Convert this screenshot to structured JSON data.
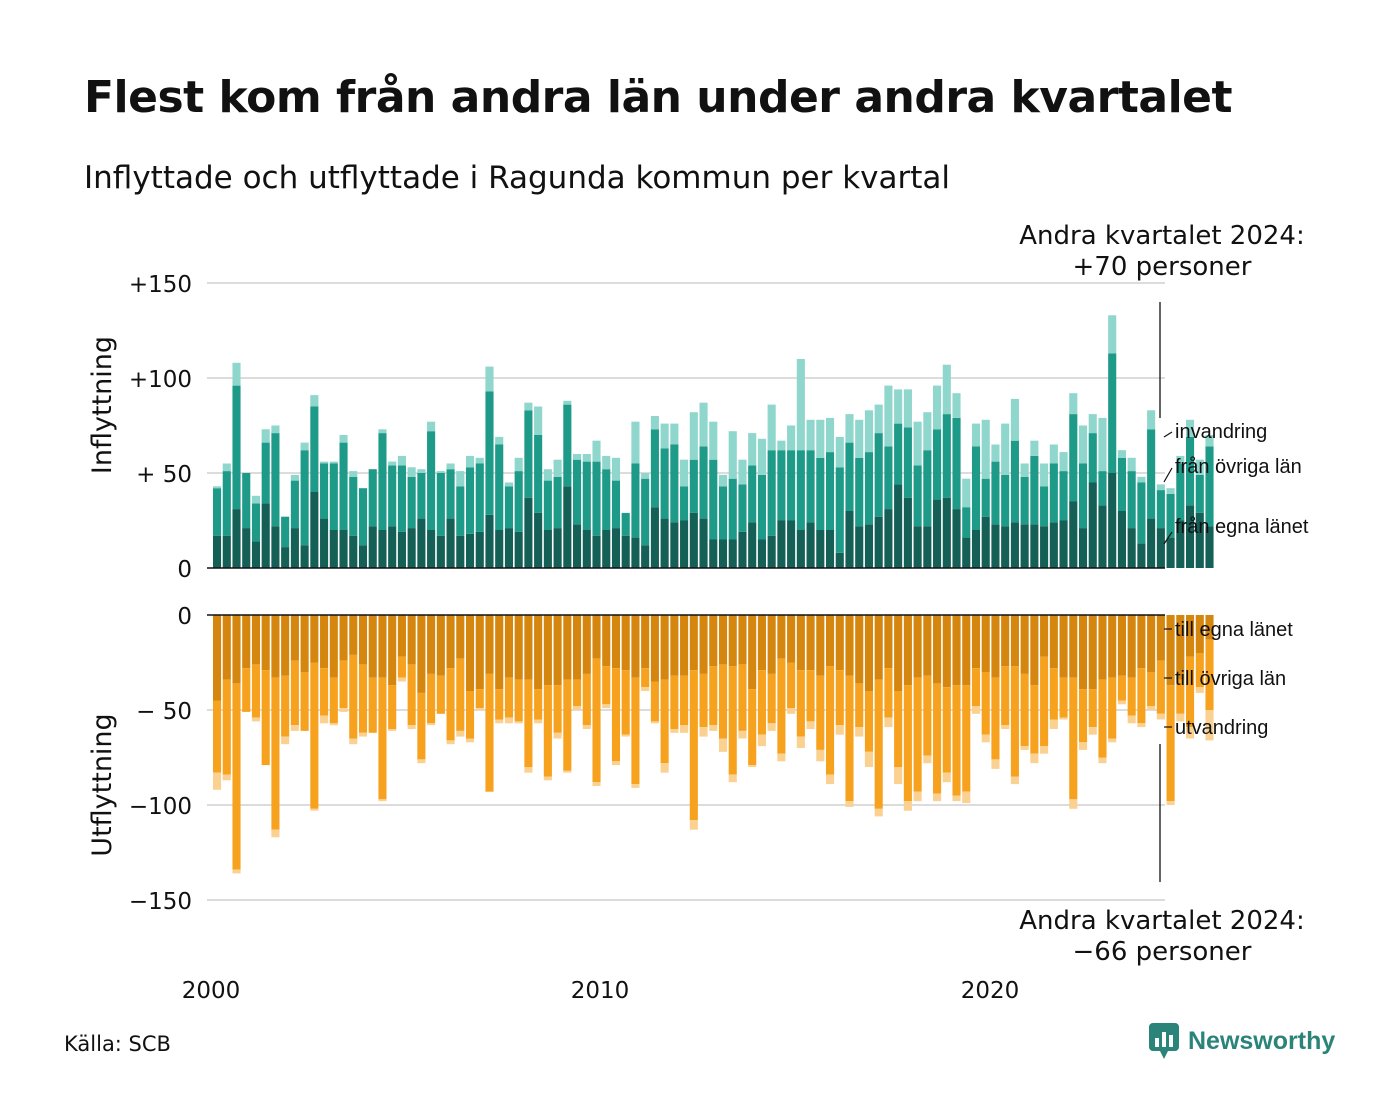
{
  "title": "Flest kom från andra län under andra kvartalet",
  "subtitle": "Inflyttade och utflyttade i Ragunda kommun per kvartal",
  "source": "Källa: SCB",
  "brand": "Newsworthy",
  "colors": {
    "egna_in": "#145f56",
    "ovriga_in": "#1e9a88",
    "invandring": "#8fd6cc",
    "egna_out": "#d4860f",
    "ovriga_out": "#f7a21f",
    "utvandring": "#fad191",
    "grid": "#dcdcdc",
    "brand": "#2a8479"
  },
  "chart_data": {
    "type": "bar",
    "stacked": true,
    "x_axis": {
      "ticks": [
        "2000",
        "2010",
        "2020"
      ],
      "range": [
        "2000 Q1",
        "2024 Q2"
      ]
    },
    "top_panel": {
      "ylabel": "Inflyttning",
      "ylim": [
        0,
        150
      ],
      "ticks": [
        {
          "value": 0,
          "label": "0"
        },
        {
          "value": 50,
          "label": "+ 50"
        },
        {
          "value": 100,
          "label": "+100"
        },
        {
          "value": 150,
          "label": "+150"
        }
      ],
      "annotation": [
        "Andra kvartalet 2024:",
        "+70 personer"
      ]
    },
    "bottom_panel": {
      "ylabel": "Utflyttning",
      "ylim": [
        -150,
        0
      ],
      "ticks": [
        {
          "value": 0,
          "label": "0"
        },
        {
          "value": -50,
          "label": "− 50"
        },
        {
          "value": -100,
          "label": "−100"
        },
        {
          "value": -150,
          "label": "−150"
        }
      ],
      "annotation": [
        "Andra kvartalet 2024:",
        "−66 personer"
      ]
    },
    "series": [
      {
        "name": "från egna länet",
        "panel": "top",
        "values": [
          17,
          17,
          31,
          21,
          14,
          34,
          22,
          11,
          21,
          12,
          40,
          26,
          20,
          20,
          17,
          12,
          22,
          20,
          22,
          19,
          21,
          26,
          20,
          17,
          26,
          17,
          18,
          19,
          28,
          20,
          21,
          19,
          37,
          29,
          20,
          21,
          43,
          23,
          20,
          17,
          20,
          21,
          17,
          16,
          12,
          32,
          26,
          24,
          25,
          29,
          26,
          15,
          15,
          15,
          19,
          24,
          15,
          17,
          25,
          25,
          20,
          24,
          20,
          20,
          8,
          30,
          22,
          23,
          27,
          31,
          44,
          37,
          22,
          22,
          36,
          37,
          31,
          16,
          20,
          27,
          23,
          22,
          24,
          23,
          23,
          22,
          24,
          25,
          35,
          21,
          45,
          33,
          50,
          30,
          21,
          13,
          26,
          21,
          16,
          25,
          33,
          29,
          22
        ]
      },
      {
        "name": "från övriga län",
        "panel": "top",
        "values": [
          25,
          34,
          65,
          29,
          20,
          32,
          49,
          16,
          25,
          50,
          45,
          29,
          35,
          46,
          31,
          30,
          30,
          51,
          32,
          35,
          27,
          24,
          52,
          33,
          26,
          26,
          35,
          36,
          65,
          45,
          22,
          32,
          46,
          41,
          26,
          27,
          43,
          34,
          36,
          39,
          32,
          25,
          12,
          39,
          35,
          41,
          37,
          41,
          18,
          28,
          38,
          42,
          28,
          32,
          25,
          30,
          34,
          45,
          37,
          37,
          42,
          38,
          38,
          41,
          45,
          36,
          36,
          38,
          44,
          33,
          32,
          37,
          32,
          40,
          37,
          44,
          48,
          16,
          44,
          20,
          33,
          27,
          43,
          25,
          36,
          21,
          31,
          26,
          46,
          34,
          26,
          18,
          63,
          28,
          30,
          32,
          47,
          20,
          23,
          30,
          36,
          20,
          42
        ]
      },
      {
        "name": "invandring",
        "panel": "top",
        "values": [
          1,
          4,
          12,
          0,
          4,
          7,
          4,
          0,
          3,
          4,
          6,
          1,
          1,
          4,
          3,
          0,
          0,
          2,
          2,
          5,
          5,
          2,
          5,
          1,
          3,
          8,
          6,
          3,
          13,
          4,
          2,
          7,
          4,
          15,
          6,
          9,
          2,
          3,
          4,
          11,
          7,
          12,
          0,
          22,
          3,
          7,
          13,
          11,
          14,
          25,
          23,
          20,
          6,
          25,
          13,
          17,
          19,
          24,
          5,
          13,
          48,
          16,
          20,
          18,
          16,
          15,
          20,
          22,
          15,
          32,
          18,
          20,
          23,
          20,
          23,
          26,
          13,
          15,
          12,
          31,
          9,
          27,
          22,
          7,
          8,
          12,
          10,
          10,
          11,
          20,
          10,
          28,
          20,
          4,
          7,
          3,
          10,
          3,
          3,
          4,
          9,
          8,
          6
        ]
      },
      {
        "name": "till egna länet",
        "panel": "bottom",
        "values": [
          -45,
          -34,
          -36,
          -28,
          -26,
          -29,
          -33,
          -32,
          -24,
          -30,
          -25,
          -28,
          -33,
          -24,
          -21,
          -26,
          -33,
          -33,
          -37,
          -22,
          -26,
          -41,
          -31,
          -32,
          -28,
          -23,
          -40,
          -39,
          -31,
          -39,
          -33,
          -34,
          -34,
          -39,
          -37,
          -37,
          -34,
          -34,
          -31,
          -23,
          -27,
          -28,
          -29,
          -33,
          -28,
          -35,
          -34,
          -32,
          -32,
          -29,
          -31,
          -27,
          -26,
          -27,
          -26,
          -39,
          -29,
          -31,
          -23,
          -25,
          -29,
          -29,
          -32,
          -27,
          -29,
          -32,
          -36,
          -40,
          -34,
          -28,
          -40,
          -37,
          -33,
          -32,
          -36,
          -38,
          -37,
          -37,
          -28,
          -30,
          -33,
          -27,
          -27,
          -31,
          -37,
          -22,
          -28,
          -33,
          -33,
          -39,
          -39,
          -34,
          -33,
          -32,
          -33,
          -28,
          -30,
          -24,
          -37,
          -34,
          -22,
          -20,
          -13
        ]
      },
      {
        "name": "till övriga län",
        "panel": "bottom",
        "values": [
          -38,
          -50,
          -98,
          -23,
          -28,
          -50,
          -80,
          -32,
          -34,
          -31,
          -77,
          -25,
          -24,
          -25,
          -44,
          -36,
          -29,
          -64,
          -23,
          -11,
          -32,
          -35,
          -26,
          -20,
          -38,
          -38,
          -25,
          -10,
          -62,
          -16,
          -21,
          -22,
          -46,
          -16,
          -48,
          -25,
          -48,
          -14,
          -27,
          -65,
          -20,
          -49,
          -34,
          -56,
          -10,
          -21,
          -44,
          -28,
          -26,
          -79,
          -28,
          -31,
          -39,
          -57,
          -35,
          -40,
          -34,
          -26,
          -50,
          -24,
          -35,
          -27,
          -39,
          -57,
          -29,
          -66,
          -23,
          -32,
          -68,
          -26,
          -40,
          -61,
          -60,
          -42,
          -58,
          -45,
          -58,
          -56,
          -20,
          -33,
          -43,
          -31,
          -58,
          -38,
          -36,
          -47,
          -27,
          -21,
          -64,
          -28,
          -20,
          -41,
          -32,
          -13,
          -20,
          -29,
          -18,
          -28,
          -61,
          -18,
          -37,
          -18,
          -37
        ]
      },
      {
        "name": "utvandring",
        "panel": "bottom",
        "values": [
          -9,
          -3,
          -2,
          0,
          -2,
          0,
          -4,
          -4,
          -3,
          0,
          -1,
          -4,
          -1,
          -2,
          -3,
          -2,
          0,
          -1,
          -1,
          -2,
          -2,
          -2,
          -1,
          0,
          -2,
          -3,
          -2,
          -1,
          0,
          -2,
          -3,
          -1,
          -3,
          -2,
          -2,
          -3,
          -1,
          -2,
          -2,
          -2,
          -2,
          -2,
          -1,
          -2,
          -2,
          -1,
          -5,
          -2,
          -4,
          -5,
          -5,
          -3,
          -7,
          -4,
          -4,
          -1,
          -6,
          -4,
          -4,
          -3,
          -6,
          -4,
          -6,
          -5,
          -5,
          -3,
          -5,
          -8,
          -4,
          -5,
          -9,
          -5,
          -5,
          -4,
          -4,
          -5,
          -3,
          -6,
          -4,
          -4,
          -5,
          -2,
          -4,
          -2,
          -5,
          -4,
          -5,
          -1,
          -5,
          -4,
          -4,
          -3,
          -2,
          -2,
          -4,
          -2,
          -2,
          -3,
          -2,
          -4,
          -6,
          -3,
          -16
        ]
      }
    ],
    "labels_top": [
      "invandring",
      "från övriga län",
      "från egna länet"
    ],
    "labels_bottom": [
      "till egna länet",
      "till övriga län",
      "utvandring"
    ]
  }
}
